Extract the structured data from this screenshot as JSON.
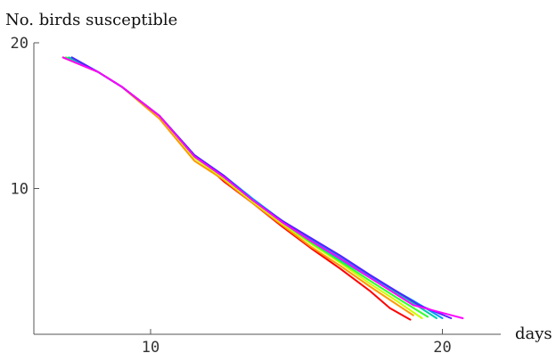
{
  "chart_data": {
    "type": "line",
    "title": "",
    "ylabel": "No. birds susceptible",
    "xlabel": "days",
    "xlim": [
      6,
      22
    ],
    "ylim": [
      0,
      20
    ],
    "xticks": [
      10,
      20
    ],
    "yticks": [
      10,
      20
    ],
    "grid": false,
    "series": [
      {
        "color": "#ff0000",
        "x": [
          7.0,
          8.2,
          9.0,
          10.3,
          11.5,
          12.5,
          13.5,
          14.5,
          15.5,
          16.5,
          17.5,
          18.2,
          18.9
        ],
        "y": [
          19.0,
          18.0,
          17.0,
          15.0,
          12.3,
          10.5,
          9.0,
          7.4,
          5.9,
          4.5,
          3.0,
          1.8,
          1.0
        ]
      },
      {
        "color": "#ff9900",
        "x": [
          7.0,
          8.2,
          9.0,
          10.3,
          11.5,
          12.5,
          13.5,
          14.5,
          15.5,
          16.5,
          17.5,
          18.4,
          19.0
        ],
        "y": [
          19.0,
          18.0,
          17.0,
          14.8,
          11.9,
          10.6,
          9.0,
          7.5,
          6.0,
          4.7,
          3.3,
          2.1,
          1.3
        ]
      },
      {
        "color": "#ccff00",
        "x": [
          7.1,
          8.2,
          9.0,
          10.3,
          11.5,
          12.5,
          13.5,
          14.5,
          15.5,
          16.5,
          17.5,
          18.5,
          19.3
        ],
        "y": [
          19.0,
          18.0,
          17.0,
          15.0,
          12.1,
          10.7,
          9.1,
          7.6,
          6.2,
          4.9,
          3.5,
          2.2,
          1.1
        ]
      },
      {
        "color": "#33ff33",
        "x": [
          7.1,
          8.2,
          9.0,
          10.3,
          11.5,
          12.5,
          13.5,
          14.5,
          15.5,
          16.5,
          17.5,
          18.6,
          19.5
        ],
        "y": [
          19.0,
          18.0,
          17.0,
          15.0,
          12.2,
          10.8,
          9.2,
          7.7,
          6.3,
          5.0,
          3.7,
          2.3,
          1.2
        ]
      },
      {
        "color": "#00ccaa",
        "x": [
          7.2,
          8.2,
          9.0,
          10.3,
          11.5,
          12.5,
          13.5,
          14.5,
          15.5,
          16.5,
          17.5,
          18.8,
          19.8
        ],
        "y": [
          19.0,
          18.0,
          17.0,
          15.0,
          12.3,
          10.8,
          9.2,
          7.8,
          6.4,
          5.1,
          3.9,
          2.4,
          1.1
        ]
      },
      {
        "color": "#0099ff",
        "x": [
          7.3,
          8.2,
          9.0,
          10.3,
          11.5,
          12.5,
          13.5,
          14.5,
          15.5,
          16.5,
          17.5,
          19.0,
          20.0
        ],
        "y": [
          19.0,
          18.0,
          17.0,
          15.0,
          12.3,
          10.9,
          9.3,
          7.8,
          6.5,
          5.3,
          4.0,
          2.3,
          1.1
        ]
      },
      {
        "color": "#5522ff",
        "x": [
          7.3,
          8.2,
          9.0,
          10.3,
          11.5,
          12.5,
          13.5,
          14.5,
          15.5,
          16.5,
          17.5,
          19.2,
          20.3
        ],
        "y": [
          19.0,
          18.0,
          17.0,
          15.0,
          12.3,
          10.9,
          9.2,
          7.8,
          6.6,
          5.4,
          4.1,
          2.0,
          1.1
        ]
      },
      {
        "color": "#ff00ff",
        "x": [
          7.0,
          8.2,
          9.0,
          10.3,
          11.5,
          12.5,
          13.5,
          14.5,
          15.5,
          16.5,
          17.5,
          19.0,
          20.7
        ],
        "y": [
          19.0,
          18.0,
          17.0,
          15.0,
          12.2,
          10.8,
          9.2,
          7.7,
          6.4,
          5.2,
          3.9,
          2.0,
          1.1
        ]
      }
    ]
  }
}
